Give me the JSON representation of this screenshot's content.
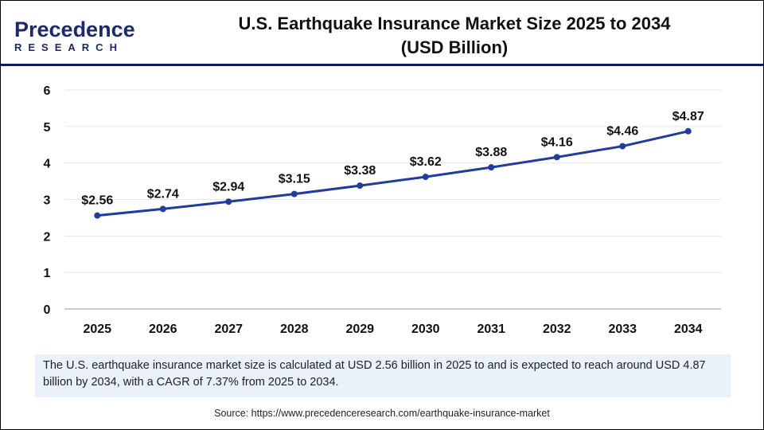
{
  "logo": {
    "line1": "Precedence",
    "line2": "RESEARCH"
  },
  "title_line1": "U.S. Earthquake Insurance Market Size 2025 to 2034",
  "title_line2": "(USD Billion)",
  "note": "The U.S. earthquake insurance market size is calculated at USD 2.56 billion in 2025 to and is expected to reach around USD 4.87 billion by 2034, with a CAGR of 7.37% from 2025 to 2034.",
  "source": "Source: https://www.precedenceresearch.com/earthquake-insurance-market",
  "chart_data": {
    "type": "line",
    "categories": [
      "2025",
      "2026",
      "2027",
      "2028",
      "2029",
      "2030",
      "2031",
      "2032",
      "2033",
      "2034"
    ],
    "values": [
      2.56,
      2.74,
      2.94,
      3.15,
      3.38,
      3.62,
      3.88,
      4.16,
      4.46,
      4.87
    ],
    "data_labels": [
      "$2.56",
      "$2.74",
      "$2.94",
      "$3.15",
      "$3.38",
      "$3.62",
      "$3.88",
      "$4.16",
      "$4.46",
      "$4.87"
    ],
    "yticks": [
      "0",
      "1",
      "2",
      "3",
      "4",
      "5",
      "6"
    ],
    "ylim": [
      0,
      6
    ],
    "grid": true,
    "line_color": "#1f3c9e"
  }
}
